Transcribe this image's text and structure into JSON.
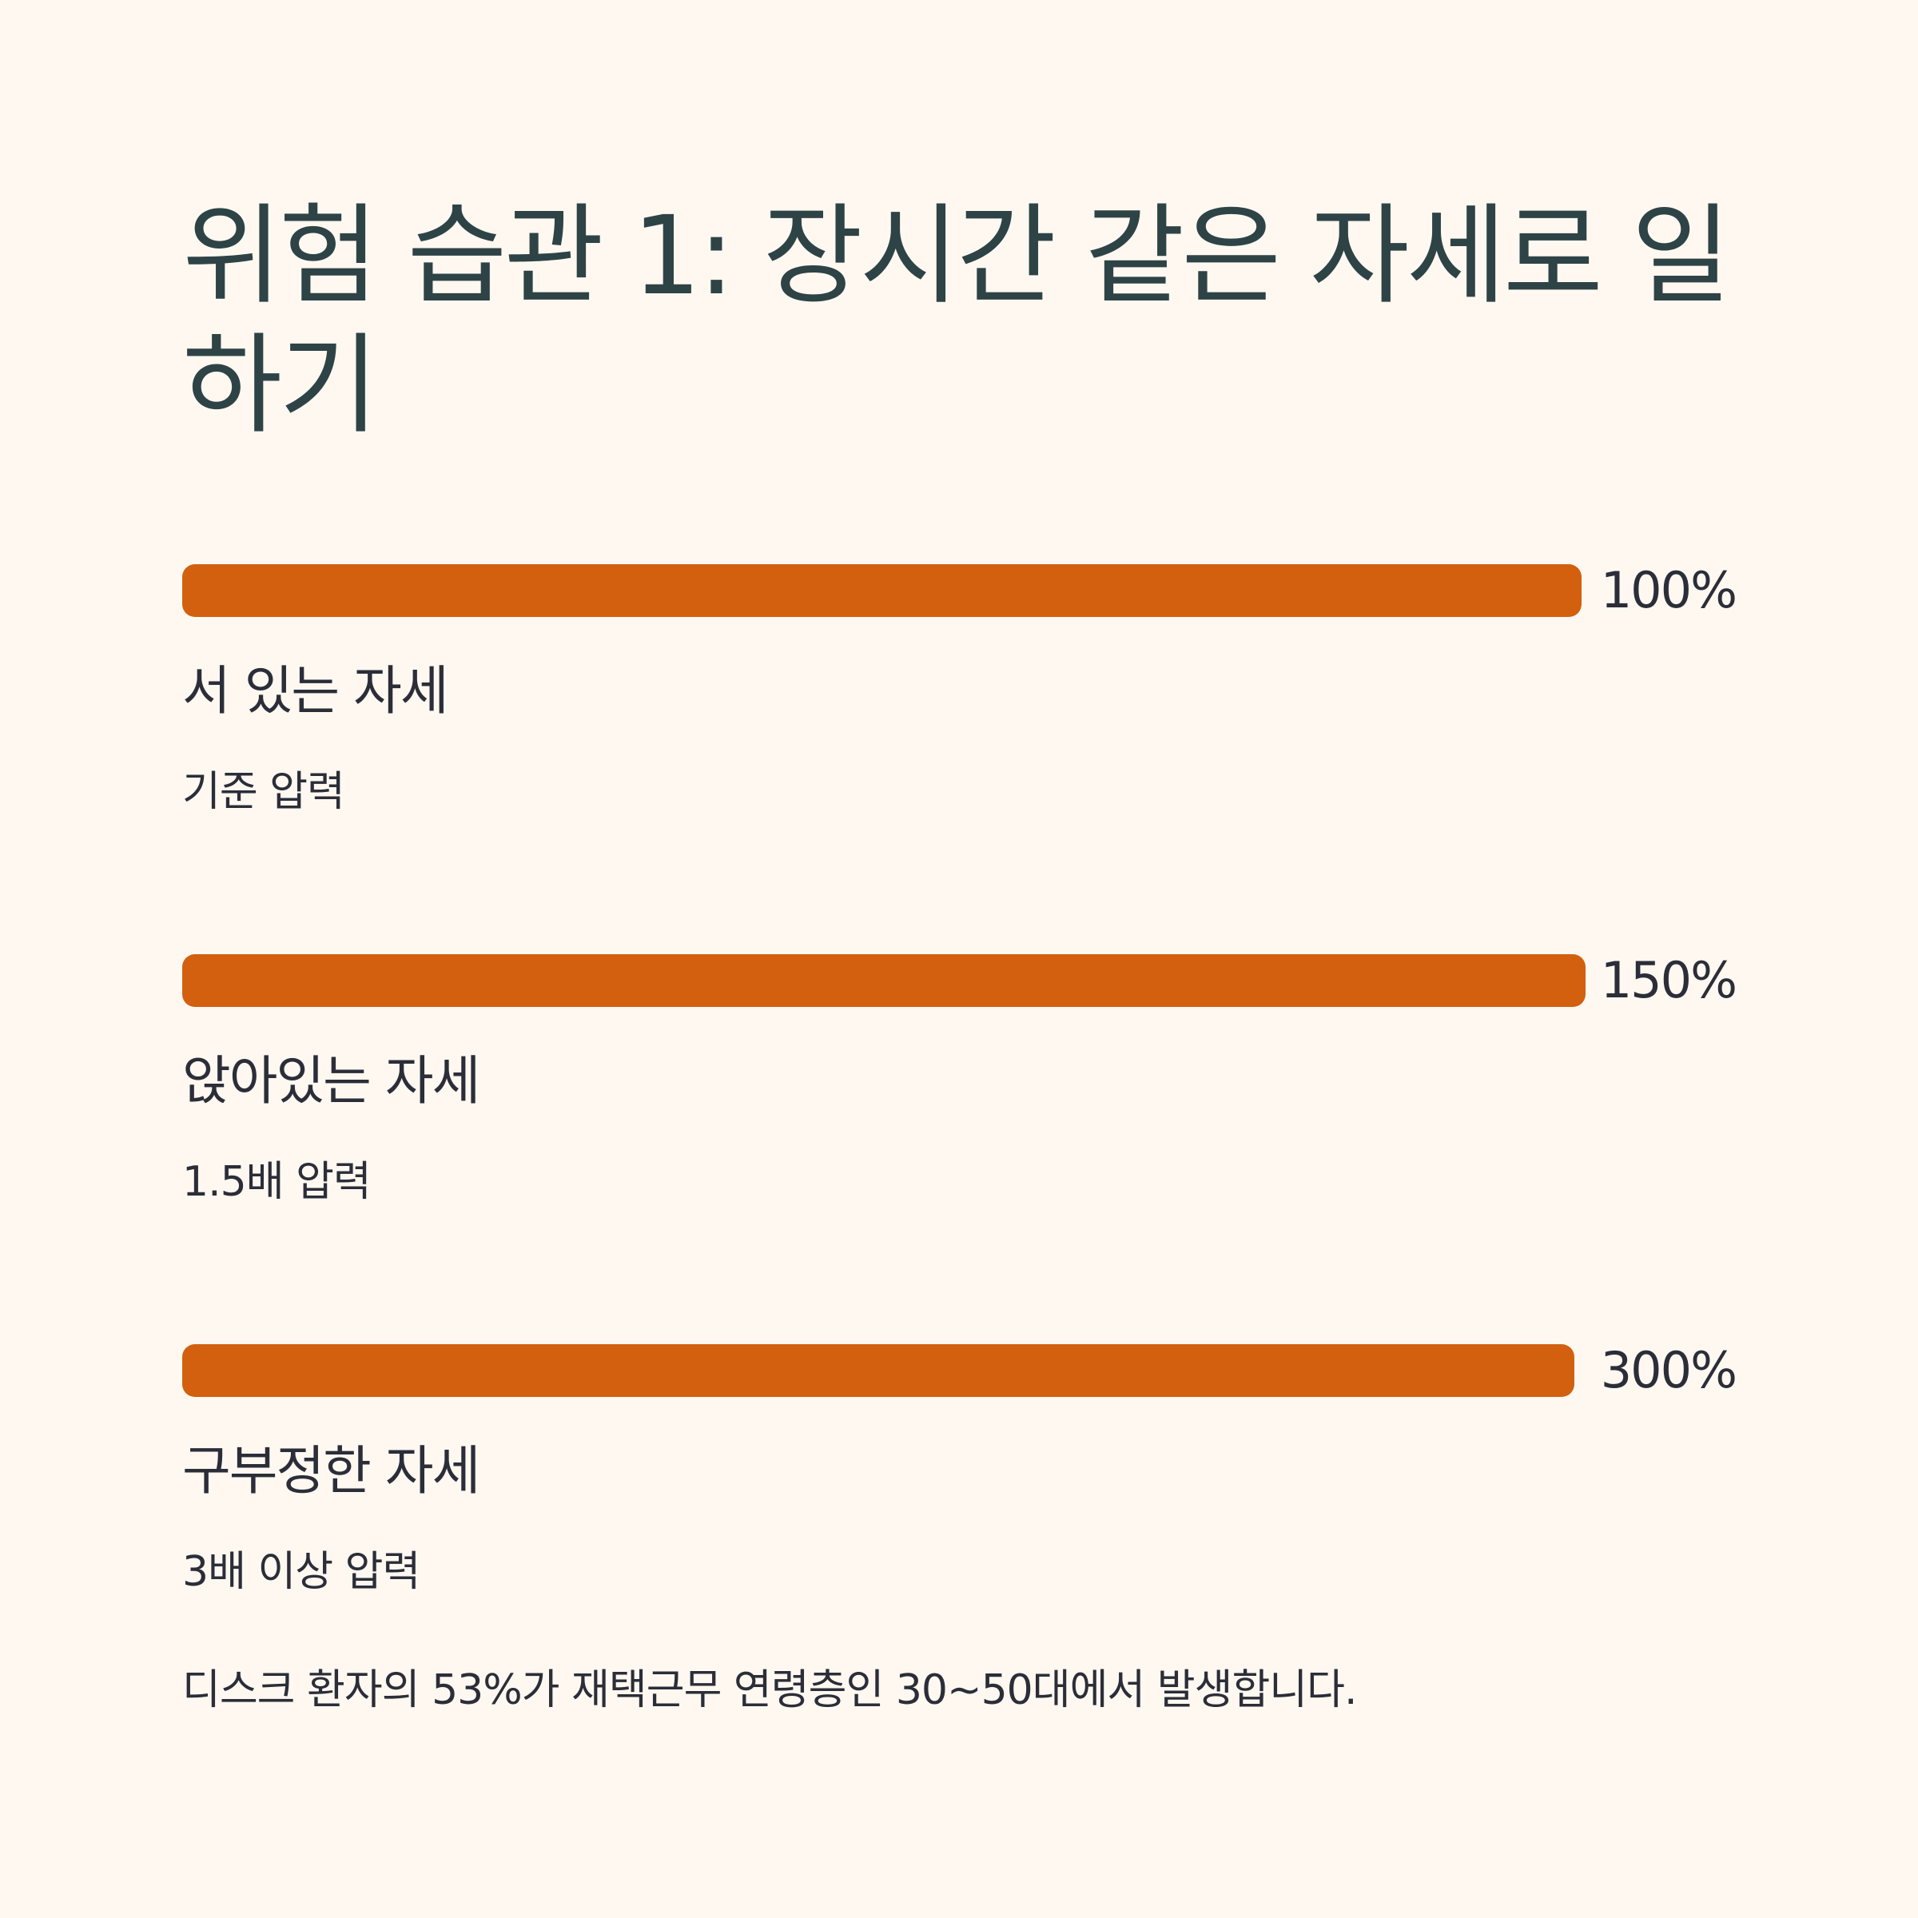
{
  "title": "위험 습관 1: 장시간 같은 자세로 일하기",
  "colors": {
    "background": "#FEF8F1",
    "bar": "#D2600F",
    "title": "#2E4345",
    "text": "#2B2E38"
  },
  "chart_data": {
    "type": "bar",
    "orientation": "horizontal",
    "categories": [
      "서 있는 자세",
      "앉아있는 자세",
      "구부정한 자세"
    ],
    "values": [
      100,
      150,
      300
    ],
    "value_labels": [
      "100%",
      "150%",
      "300%"
    ],
    "descriptions": [
      "기준 압력",
      "1.5배 압력",
      "3배 이상 압력"
    ],
    "bar_fill_fraction": [
      0.995,
      0.998,
      0.99
    ]
  },
  "footnote": "디스크 환자의 53%가 재택근무 연령층인 30~50대에서 발생합니다."
}
